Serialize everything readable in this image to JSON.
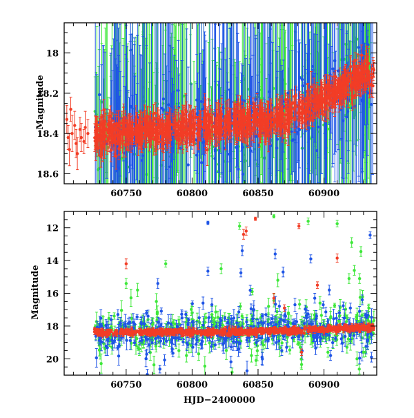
{
  "colors": {
    "red": "#f23d26",
    "green": "#3ee83a",
    "blue": "#1f55e6",
    "frame": "#000000",
    "background": "#ffffff"
  },
  "chart_data": [
    {
      "type": "scatter",
      "panel": "top",
      "xlabel": "",
      "ylabel": "Magnitude",
      "xlim": [
        60703,
        60940
      ],
      "ylim": [
        18.65,
        17.85
      ],
      "y_inverted": true,
      "xticks": [
        60750,
        60800,
        60850,
        60900
      ],
      "yticks": [
        18,
        18.2,
        18.4,
        18.6
      ],
      "ytick_labels": [
        "18",
        "18.2",
        "18.4",
        "18.6"
      ],
      "grid": false,
      "series": [
        {
          "color": "red",
          "dense_band": [
            {
              "x": 60726,
              "y": 18.4
            },
            {
              "x": 60760,
              "y": 18.39
            },
            {
              "x": 60800,
              "y": 18.37
            },
            {
              "x": 60840,
              "y": 18.35
            },
            {
              "x": 60870,
              "y": 18.32
            },
            {
              "x": 60900,
              "y": 18.23
            },
            {
              "x": 60925,
              "y": 18.12
            },
            {
              "x": 60937,
              "y": 18.08
            }
          ],
          "points": [
            {
              "x": 60705,
              "y": 18.33,
              "err": 0.07
            },
            {
              "x": 60706,
              "y": 18.42,
              "err": 0.06
            },
            {
              "x": 60707,
              "y": 18.48,
              "err": 0.08
            },
            {
              "x": 60708,
              "y": 18.28,
              "err": 0.06
            },
            {
              "x": 60709,
              "y": 18.4,
              "err": 0.09
            },
            {
              "x": 60711,
              "y": 18.36,
              "err": 0.07
            },
            {
              "x": 60712,
              "y": 18.45,
              "err": 0.07
            },
            {
              "x": 60713,
              "y": 18.5,
              "err": 0.08
            },
            {
              "x": 60715,
              "y": 18.38,
              "err": 0.06
            },
            {
              "x": 60716,
              "y": 18.42,
              "err": 0.07
            },
            {
              "x": 60718,
              "y": 18.44,
              "err": 0.06
            },
            {
              "x": 60719,
              "y": 18.37,
              "err": 0.08
            },
            {
              "x": 60721,
              "y": 18.4,
              "err": 0.07
            }
          ]
        },
        {
          "color": "green",
          "points": []
        },
        {
          "color": "blue",
          "points": []
        }
      ]
    },
    {
      "type": "scatter",
      "panel": "bottom",
      "xlabel": "HJD−2400000",
      "ylabel": "Magnitude",
      "xlim": [
        60703,
        60940
      ],
      "ylim": [
        21,
        11
      ],
      "y_inverted": true,
      "xticks": [
        60750,
        60800,
        60850,
        60900
      ],
      "yticks": [
        12,
        14,
        16,
        18,
        20
      ],
      "ytick_labels": [
        "12",
        "14",
        "16",
        "18",
        "20"
      ],
      "grid": false,
      "series": [
        {
          "color": "red",
          "dense_band": [
            {
              "x": 60705,
              "y": 18.45
            },
            {
              "x": 60726,
              "y": 18.4
            },
            {
              "x": 60800,
              "y": 18.37
            },
            {
              "x": 60870,
              "y": 18.3
            },
            {
              "x": 60937,
              "y": 18.08
            }
          ],
          "points": [
            {
              "x": 60750,
              "y": 14.2,
              "err": 0.3
            },
            {
              "x": 60841,
              "y": 12.2,
              "err": 0.25
            },
            {
              "x": 60848,
              "y": 11.45,
              "err": 0.1
            },
            {
              "x": 60881,
              "y": 11.9,
              "err": 0.15
            },
            {
              "x": 60862,
              "y": 16.3,
              "err": 0.3
            },
            {
              "x": 60883,
              "y": 19.6,
              "err": 0.2
            },
            {
              "x": 60910,
              "y": 13.85,
              "err": 0.25
            },
            {
              "x": 60839,
              "y": 12.4,
              "err": 0.3
            },
            {
              "x": 60870,
              "y": 16.9,
              "err": 0.2
            },
            {
              "x": 60895,
              "y": 15.5,
              "err": 0.2
            }
          ]
        },
        {
          "color": "green",
          "points": [
            {
              "x": 60750,
              "y": 15.4,
              "err": 0.3
            },
            {
              "x": 60780,
              "y": 14.2,
              "err": 0.2
            },
            {
              "x": 60822,
              "y": 14.5,
              "err": 0.3
            },
            {
              "x": 60836,
              "y": 11.9,
              "err": 0.2
            },
            {
              "x": 60862,
              "y": 11.3,
              "err": 0.1
            },
            {
              "x": 60888,
              "y": 11.6,
              "err": 0.2
            },
            {
              "x": 60910,
              "y": 11.75,
              "err": 0.2
            },
            {
              "x": 60921,
              "y": 12.9,
              "err": 0.3
            },
            {
              "x": 60923,
              "y": 14.6,
              "err": 0.3
            },
            {
              "x": 60927,
              "y": 15.1,
              "err": 0.3
            },
            {
              "x": 60928,
              "y": 13.45,
              "err": 0.3
            },
            {
              "x": 60882,
              "y": 19.3,
              "err": 0.3
            },
            {
              "x": 60883,
              "y": 20.35,
              "err": 0.3
            },
            {
              "x": 60903,
              "y": 19.6,
              "err": 0.3
            },
            {
              "x": 60770,
              "y": 17.9,
              "err": 0.4
            },
            {
              "x": 60800,
              "y": 17.2,
              "err": 0.4
            },
            {
              "x": 60815,
              "y": 17.3,
              "err": 0.5
            },
            {
              "x": 60858,
              "y": 16.8,
              "err": 0.5
            },
            {
              "x": 60865,
              "y": 15.2,
              "err": 0.4
            },
            {
              "x": 60873,
              "y": 17.2,
              "err": 0.4
            },
            {
              "x": 60897,
              "y": 16.6,
              "err": 0.4
            },
            {
              "x": 60919,
              "y": 15.1,
              "err": 0.3
            },
            {
              "x": 60905,
              "y": 17.5,
              "err": 0.4
            },
            {
              "x": 60760,
              "y": 19.4,
              "err": 0.4
            },
            {
              "x": 60790,
              "y": 19.5,
              "err": 0.4
            },
            {
              "x": 60845,
              "y": 19.8,
              "err": 0.4
            },
            {
              "x": 60930,
              "y": 19.6,
              "err": 0.3
            },
            {
              "x": 60805,
              "y": 19.7,
              "err": 0.4
            }
          ]
        },
        {
          "color": "blue",
          "points": [
            {
              "x": 60812,
              "y": 11.7,
              "err": 0.1
            },
            {
              "x": 60812,
              "y": 14.65,
              "err": 0.25
            },
            {
              "x": 60838,
              "y": 13.4,
              "err": 0.3
            },
            {
              "x": 60837,
              "y": 14.75,
              "err": 0.25
            },
            {
              "x": 60863,
              "y": 13.6,
              "err": 0.3
            },
            {
              "x": 60869,
              "y": 14.7,
              "err": 0.3
            },
            {
              "x": 60890,
              "y": 13.9,
              "err": 0.25
            },
            {
              "x": 60904,
              "y": 15.8,
              "err": 0.3
            },
            {
              "x": 60929,
              "y": 16.4,
              "err": 0.3
            },
            {
              "x": 60935,
              "y": 12.45,
              "err": 0.2
            },
            {
              "x": 60774,
              "y": 15.4,
              "err": 0.3
            },
            {
              "x": 60815,
              "y": 16.7,
              "err": 0.4
            },
            {
              "x": 60856,
              "y": 17.3,
              "err": 0.4
            },
            {
              "x": 60878,
              "y": 16.7,
              "err": 0.4
            },
            {
              "x": 60893,
              "y": 16.3,
              "err": 0.3
            },
            {
              "x": 60920,
              "y": 16.9,
              "err": 0.3
            },
            {
              "x": 60927,
              "y": 17.1,
              "err": 0.3
            },
            {
              "x": 60868,
              "y": 19.5,
              "err": 0.3
            },
            {
              "x": 60905,
              "y": 19.8,
              "err": 0.3
            },
            {
              "x": 60936,
              "y": 19.9,
              "err": 0.3
            }
          ]
        }
      ]
    }
  ]
}
